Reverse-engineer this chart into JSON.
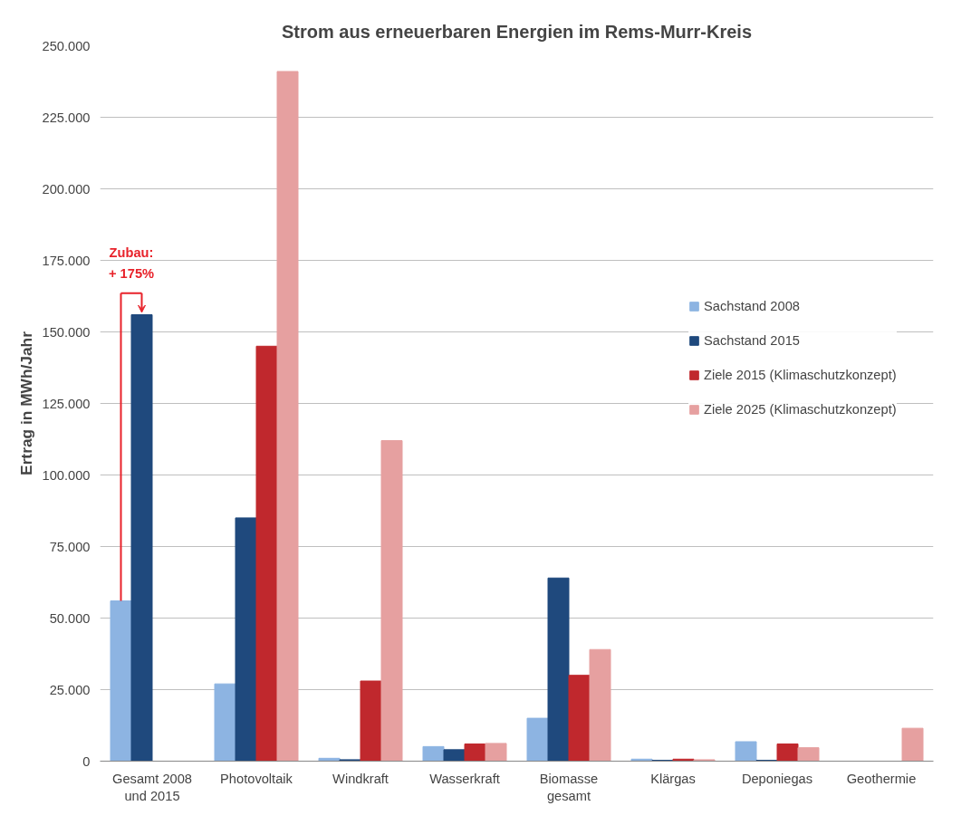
{
  "chart_data": {
    "type": "bar",
    "title": "Strom aus erneuerbaren Energien im Rems-Murr-Kreis",
    "ylabel": "Ertrag in MWh/Jahr",
    "categories": [
      "Gesamt 2008\nund 2015",
      "Photovoltaik",
      "Windkraft",
      "Wasserkraft",
      "Biomasse\ngesamt",
      "Klärgas",
      "Deponiegas",
      "Geothermie"
    ],
    "series": [
      {
        "name": "Sachstand 2008",
        "color": "#8db4e2",
        "values": [
          56000,
          27000,
          1000,
          5100,
          15000,
          700,
          6800,
          null
        ]
      },
      {
        "name": "Sachstand 2015",
        "color": "#1f497d",
        "values": [
          156000,
          85000,
          500,
          4000,
          64000,
          300,
          300,
          null
        ]
      },
      {
        "name": "Ziele 2015 (Klimaschutzkonzept)",
        "color": "#c0282d",
        "values": [
          null,
          145000,
          28000,
          6000,
          30000,
          700,
          6000,
          null
        ]
      },
      {
        "name": "Ziele 2025 (Klimaschutzkonzept)",
        "color": "#e6a0a0",
        "values": [
          null,
          241000,
          112000,
          6200,
          39000,
          500,
          4700,
          11500
        ]
      }
    ],
    "ylim": [
      0,
      250000
    ],
    "yticks": [
      {
        "value": 0,
        "label": "0"
      },
      {
        "value": 25000,
        "label": "25.000"
      },
      {
        "value": 50000,
        "label": "50.000"
      },
      {
        "value": 75000,
        "label": "75.000"
      },
      {
        "value": 100000,
        "label": "100.000"
      },
      {
        "value": 125000,
        "label": "125.000"
      },
      {
        "value": 150000,
        "label": "150.000"
      },
      {
        "value": 175000,
        "label": "175.000"
      },
      {
        "value": 200000,
        "label": "200.000"
      },
      {
        "value": 225000,
        "label": "225.000"
      },
      {
        "value": 250000,
        "label": "250.000"
      }
    ],
    "grid": "y",
    "legend": "right",
    "annotations": [
      {
        "text": "Zubau:\n+ 175%",
        "x": "Gesamt 2008\nund 2015",
        "y": 156000
      }
    ]
  }
}
